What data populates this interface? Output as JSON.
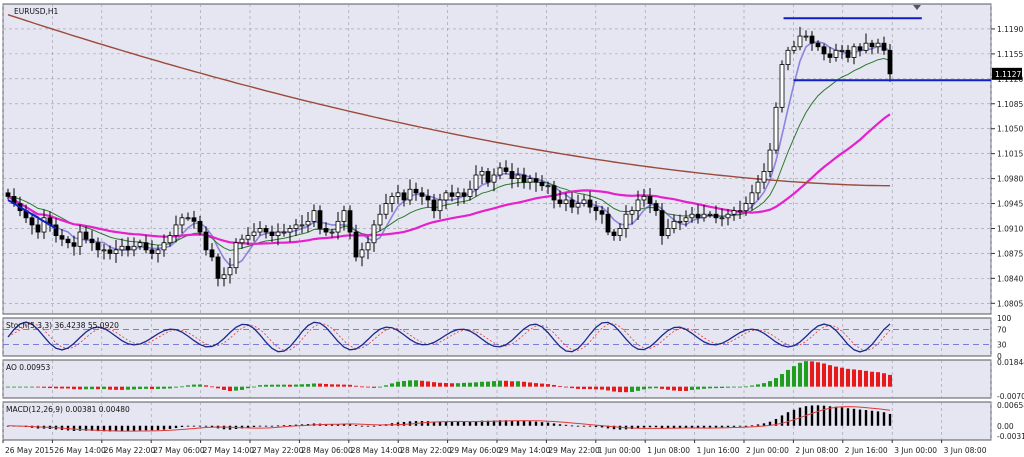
{
  "colors": {
    "background": "#ffffff",
    "plot": "#e6e6f2",
    "grid": "#9a9aa6",
    "frame": "#555560",
    "candle": "#000000",
    "sma_fast": "#8b85dd",
    "ema_green": "#2a7a2a",
    "ma_magenta": "#e620cc",
    "ma_brown": "#9c4a3a",
    "trend": "#0f1fc4",
    "stoch_main": "#1a2a8a",
    "stoch_signal": "#e23a3a",
    "ao_up": "#1f9e1f",
    "ao_down": "#e81919",
    "macd_hist": "#000000",
    "macd_signal": "#e23a3a",
    "price_tag_bg": "#000000",
    "price_tag_fg": "#ffffff"
  },
  "chart_data": [
    {
      "type": "candlestick",
      "title": "EURUSD,H1",
      "symbol": "EURUSD",
      "timeframe": "H1",
      "y_ticks": [
        "1.1190",
        "1.1155",
        "1.1120",
        "1.1085",
        "1.1050",
        "1.1015",
        "1.0980",
        "1.0945",
        "1.0910",
        "1.0875",
        "1.0840",
        "1.0805"
      ],
      "ylim": [
        1.079,
        1.1225
      ],
      "current_price": "1.1127",
      "x_ticks": [
        "26 May 2015",
        "26 May 14:00",
        "26 May 22:00",
        "27 May 06:00",
        "27 May 14:00",
        "27 May 22:00",
        "28 May 06:00",
        "28 May 14:00",
        "28 May 22:00",
        "29 May 06:00",
        "29 May 14:00",
        "29 May 22:00",
        "1 Jun 00:00",
        "1 Jun 08:00",
        "1 Jun 16:00",
        "2 Jun 00:00",
        "2 Jun 08:00",
        "2 Jun 16:00",
        "3 Jun 00:00",
        "3 Jun 08:00"
      ],
      "close": [
        1.0955,
        1.0945,
        1.0935,
        1.0925,
        1.0915,
        1.0905,
        1.0925,
        1.0915,
        1.09,
        1.0895,
        1.089,
        1.0885,
        1.0905,
        1.0895,
        1.089,
        1.088,
        1.088,
        1.0875,
        1.088,
        1.0885,
        1.088,
        1.0885,
        1.089,
        1.088,
        1.0875,
        1.088,
        1.089,
        1.09,
        1.0915,
        1.0925,
        1.0925,
        1.092,
        1.0905,
        1.088,
        1.087,
        1.084,
        1.0845,
        1.0855,
        1.089,
        1.0895,
        1.09,
        1.0905,
        1.091,
        1.0905,
        1.09,
        1.0905,
        1.0905,
        1.091,
        1.0915,
        1.0915,
        1.092,
        1.0935,
        1.091,
        1.0905,
        1.0905,
        1.092,
        1.0935,
        1.0905,
        1.087,
        1.088,
        1.089,
        1.0915,
        1.093,
        1.0945,
        1.0955,
        1.096,
        1.095,
        1.0965,
        1.096,
        1.0955,
        1.095,
        1.0935,
        1.095,
        1.096,
        1.0955,
        1.096,
        1.0955,
        1.0965,
        1.0985,
        1.099,
        1.0975,
        1.0985,
        1.0995,
        1.099,
        1.098,
        1.0985,
        1.0975,
        1.098,
        1.0975,
        1.097,
        1.097,
        1.095,
        1.0945,
        1.095,
        1.094,
        1.0945,
        1.095,
        1.094,
        1.0935,
        1.093,
        1.0905,
        1.09,
        1.091,
        1.093,
        1.0935,
        1.095,
        1.0955,
        1.0945,
        1.0935,
        1.09,
        1.091,
        1.092,
        1.092,
        1.0925,
        1.093,
        1.0925,
        1.093,
        1.093,
        1.0925,
        1.0925,
        1.093,
        1.0935,
        1.0935,
        1.0945,
        1.096,
        1.0975,
        1.099,
        1.102,
        1.108,
        1.114,
        1.116,
        1.1165,
        1.118,
        1.118,
        1.117,
        1.1165,
        1.1155,
        1.115,
        1.116,
        1.116,
        1.115,
        1.1165,
        1.116,
        1.117,
        1.1165,
        1.117,
        1.116,
        1.1127
      ],
      "series": [
        {
          "indicator": "moving average",
          "color": "#8b85dd"
        },
        {
          "indicator": "moving average",
          "color": "#2a7a2a"
        },
        {
          "indicator": "moving average",
          "color": "#e620cc"
        },
        {
          "indicator": "moving average",
          "color": "#9c4a3a"
        }
      ],
      "annotations": [
        {
          "type": "horizontal trendline",
          "price": 1.1205,
          "from_fraction": 0.79,
          "to_fraction": 0.93
        },
        {
          "type": "horizontal trendline",
          "price": 1.1118,
          "from_fraction": 0.8,
          "to_fraction": 1.0
        },
        {
          "type": "diagonal trendline",
          "from_price": 1.095,
          "to_price": 1.091
        }
      ],
      "grid": true
    },
    {
      "type": "line",
      "title": "Stoch(5,3,3) 36.4238 55.0920",
      "y_ticks": [
        "100",
        "70",
        "30",
        "0"
      ],
      "ylim": [
        0,
        100
      ],
      "levels": [
        70,
        30
      ]
    },
    {
      "type": "bar",
      "title": "AO 0.00953",
      "y_ticks": [
        "0.01844",
        "-0.00705"
      ],
      "ylim": [
        -0.0085,
        0.02
      ]
    },
    {
      "type": "bar",
      "title": "MACD(12,26,9) 0.00381 0.00480",
      "y_ticks": [
        "0.00658",
        "0.00",
        "-0.00316"
      ],
      "ylim": [
        -0.0045,
        0.0075
      ]
    }
  ]
}
